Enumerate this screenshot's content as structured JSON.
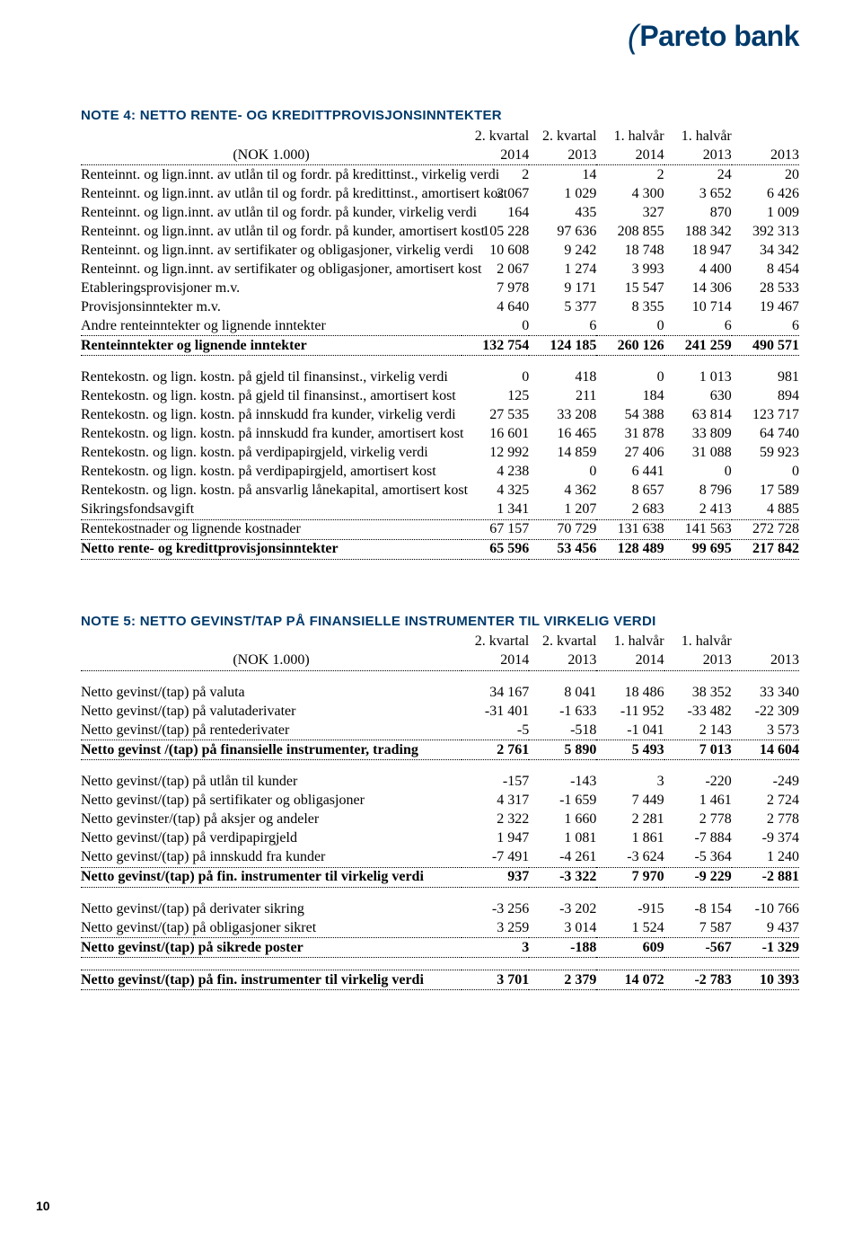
{
  "logo_text": "Pareto bank",
  "page_number": "10",
  "note4": {
    "title": "NOTE 4: NETTO RENTE- OG KREDITTPROVISJONSINNTEKTER",
    "head1": [
      "",
      "2. kvartal",
      "2. kvartal",
      "1. halvår",
      "1. halvår",
      ""
    ],
    "head2": [
      "(NOK 1.000)",
      "2014",
      "2013",
      "2014",
      "2013",
      "2013"
    ],
    "rows_a": [
      [
        "Renteinnt. og lign.innt. av utlån til og fordr. på kredittinst., virkelig verdi",
        "2",
        "14",
        "2",
        "24",
        "20"
      ],
      [
        "Renteinnt. og lign.innt. av utlån til og fordr. på kredittinst., amortisert kost",
        "2 067",
        "1 029",
        "4 300",
        "3 652",
        "6 426"
      ],
      [
        "Renteinnt. og lign.innt. av utlån til og fordr. på kunder, virkelig verdi",
        "164",
        "435",
        "327",
        "870",
        "1 009"
      ],
      [
        "Renteinnt. og lign.innt. av utlån til og fordr. på kunder, amortisert kost",
        "105 228",
        "97 636",
        "208 855",
        "188 342",
        "392 313"
      ],
      [
        "Renteinnt. og lign.innt. av sertifikater og obligasjoner, virkelig verdi",
        "10 608",
        "9 242",
        "18 748",
        "18 947",
        "34 342"
      ],
      [
        "Renteinnt. og lign.innt. av sertifikater og obligasjoner, amortisert kost",
        "2 067",
        "1 274",
        "3 993",
        "4 400",
        "8 454"
      ],
      [
        "Etableringsprovisjoner m.v.",
        "7 978",
        "9 171",
        "15 547",
        "14 306",
        "28 533"
      ],
      [
        "Provisjonsinntekter m.v.",
        "4 640",
        "5 377",
        "8 355",
        "10 714",
        "19 467"
      ],
      [
        "Andre renteinntekter og lignende inntekter",
        "0",
        "6",
        "0",
        "6",
        "6"
      ]
    ],
    "subtotal_a": [
      "Renteinntekter og lignende inntekter",
      "132 754",
      "124 185",
      "260 126",
      "241 259",
      "490 571"
    ],
    "rows_b": [
      [
        "Rentekostn. og lign. kostn. på gjeld til finansinst., virkelig verdi",
        "0",
        "418",
        "0",
        "1 013",
        "981"
      ],
      [
        "Rentekostn. og lign. kostn. på gjeld til finansinst., amortisert kost",
        "125",
        "211",
        "184",
        "630",
        "894"
      ],
      [
        "Rentekostn. og lign. kostn. på innskudd fra kunder, virkelig verdi",
        "27 535",
        "33 208",
        "54 388",
        "63 814",
        "123 717"
      ],
      [
        "Rentekostn. og lign. kostn. på innskudd fra kunder, amortisert kost",
        "16 601",
        "16 465",
        "31 878",
        "33 809",
        "64 740"
      ],
      [
        "Rentekostn. og lign. kostn. på verdipapirgjeld, virkelig verdi",
        "12 992",
        "14 859",
        "27 406",
        "31 088",
        "59 923"
      ],
      [
        "Rentekostn. og lign. kostn. på verdipapirgjeld, amortisert kost",
        "4 238",
        "0",
        "6 441",
        "0",
        "0"
      ],
      [
        "Rentekostn. og lign. kostn. på ansvarlig lånekapital, amortisert kost",
        "4 325",
        "4 362",
        "8 657",
        "8 796",
        "17 589"
      ],
      [
        "Sikringsfondsavgift",
        "1 341",
        "1 207",
        "2 683",
        "2 413",
        "4 885"
      ]
    ],
    "subtotal_b": [
      "Rentekostnader og lignende kostnader",
      "67 157",
      "70 729",
      "131 638",
      "141 563",
      "272 728"
    ],
    "total": [
      "Netto rente- og kredittprovisjonsinntekter",
      "65 596",
      "53 456",
      "128 489",
      "99 695",
      "217 842"
    ]
  },
  "note5": {
    "title": "NOTE 5: NETTO GEVINST/TAP PÅ FINANSIELLE INSTRUMENTER TIL VIRKELIG VERDI",
    "head1": [
      "",
      "2. kvartal",
      "2. kvartal",
      "1. halvår",
      "1. halvår",
      ""
    ],
    "head2": [
      "(NOK 1.000)",
      "2014",
      "2013",
      "2014",
      "2013",
      "2013"
    ],
    "rows_a": [
      [
        "Netto gevinst/(tap) på valuta",
        "34 167",
        "8 041",
        "18 486",
        "38 352",
        "33 340"
      ],
      [
        "Netto gevinst/(tap) på valutaderivater",
        "-31 401",
        "-1 633",
        "-11 952",
        "-33 482",
        "-22 309"
      ],
      [
        "Netto gevinst/(tap) på rentederivater",
        "-5",
        "-518",
        "-1 041",
        "2 143",
        "3 573"
      ]
    ],
    "subtotal_a": [
      "Netto gevinst /(tap) på finansielle instrumenter, trading",
      "2 761",
      "5 890",
      "5 493",
      "7 013",
      "14 604"
    ],
    "rows_b": [
      [
        "Netto gevinst/(tap) på utlån til kunder",
        "-157",
        "-143",
        "3",
        "-220",
        "-249"
      ],
      [
        "Netto gevinst/(tap) på sertifikater og obligasjoner",
        "4 317",
        "-1 659",
        "7 449",
        "1 461",
        "2 724"
      ],
      [
        "Netto gevinster/(tap) på aksjer og andeler",
        "2 322",
        "1 660",
        "2 281",
        "2 778",
        "2 778"
      ],
      [
        "Netto gevinst/(tap) på verdipapirgjeld",
        "1 947",
        "1 081",
        "1 861",
        "-7 884",
        "-9 374"
      ],
      [
        "Netto gevinst/(tap) på innskudd fra kunder",
        "-7 491",
        "-4 261",
        "-3 624",
        "-5 364",
        "1 240"
      ]
    ],
    "subtotal_b": [
      "Netto gevinst/(tap) på fin. instrumenter til virkelig verdi",
      "937",
      "-3 322",
      "7 970",
      "-9 229",
      "-2 881"
    ],
    "rows_c": [
      [
        "Netto gevinst/(tap) på derivater sikring",
        "-3 256",
        "-3 202",
        "-915",
        "-8 154",
        "-10 766"
      ],
      [
        "Netto gevinst/(tap) på obligasjoner sikret",
        "3 259",
        "3 014",
        "1 524",
        "7 587",
        "9 437"
      ]
    ],
    "subtotal_c": [
      "Netto gevinst/(tap) på sikrede poster",
      "3",
      "-188",
      "609",
      "-567",
      "-1 329"
    ],
    "total": [
      "Netto gevinst/(tap) på fin. instrumenter til virkelig verdi",
      "3 701",
      "2 379",
      "14 072",
      "-2 783",
      "10 393"
    ]
  }
}
